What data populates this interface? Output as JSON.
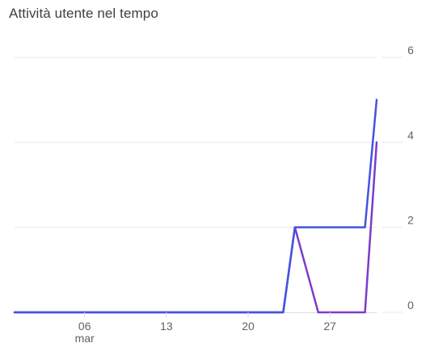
{
  "card": {
    "title": "Attività utente nel tempo"
  },
  "chart_data": {
    "type": "line",
    "title": "Attività utente nel tempo",
    "x_axis": {
      "type": "date",
      "range": [
        "2024-02-29",
        "2024-03-31"
      ],
      "ticks": [
        {
          "date": "2024-03-06",
          "label": "06",
          "sublabel": "mar"
        },
        {
          "date": "2024-03-13",
          "label": "13",
          "sublabel": ""
        },
        {
          "date": "2024-03-20",
          "label": "20",
          "sublabel": ""
        },
        {
          "date": "2024-03-27",
          "label": "27",
          "sublabel": ""
        }
      ]
    },
    "y_axis": {
      "position": "right",
      "range": [
        0,
        6
      ],
      "ticks": [
        0,
        2,
        4,
        6
      ]
    },
    "grid": true,
    "legend": "none",
    "series": [
      {
        "color": "#4353e0",
        "points": [
          {
            "x": "2024-02-29",
            "y": 0
          },
          {
            "x": "2024-03-23",
            "y": 0
          },
          {
            "x": "2024-03-24",
            "y": 2
          },
          {
            "x": "2024-03-30",
            "y": 2
          },
          {
            "x": "2024-03-31",
            "y": 5
          }
        ]
      },
      {
        "color": "#7b3bcc",
        "points": [
          {
            "x": "2024-02-29",
            "y": 0
          },
          {
            "x": "2024-03-23",
            "y": 0
          },
          {
            "x": "2024-03-24",
            "y": 2
          },
          {
            "x": "2024-03-26",
            "y": 0
          },
          {
            "x": "2024-03-30",
            "y": 0
          },
          {
            "x": "2024-03-31",
            "y": 4
          }
        ]
      }
    ]
  }
}
